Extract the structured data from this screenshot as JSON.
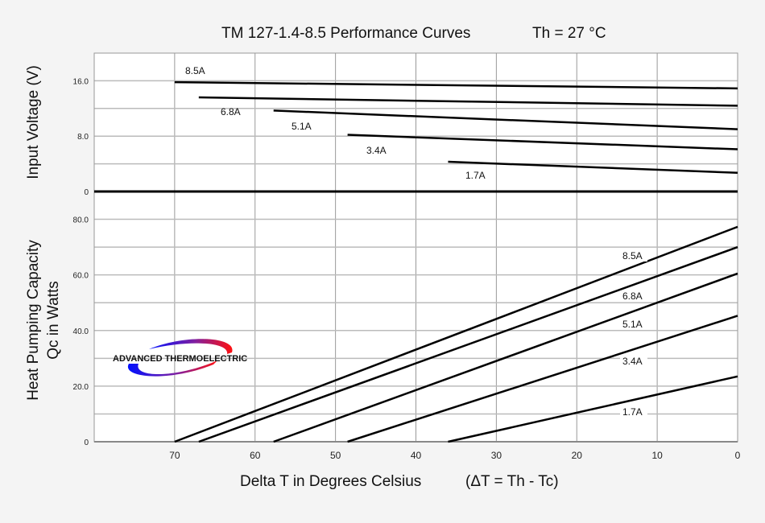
{
  "chart_data": [
    {
      "type": "line",
      "title": "TM 127-1.4-8.5 Performance Curves",
      "subtitle": "Th = 27 °C",
      "xlabel": "Delta T in Degrees Celsius",
      "xlabel_note": "(ΔT = Th - Tc)",
      "ylabel": "Input Voltage (V)",
      "xlim": [
        80,
        0
      ],
      "ylim": [
        0,
        20
      ],
      "x_ticks": [
        "70",
        "60",
        "50",
        "40",
        "30",
        "20",
        "10",
        "0"
      ],
      "y_ticks": [
        "0",
        "8.0",
        "16.0"
      ],
      "grid": true,
      "series": [
        {
          "name": "8.5A",
          "x": [
            70,
            0
          ],
          "y": [
            15.8,
            14.9
          ]
        },
        {
          "name": "6.8A",
          "x": [
            67,
            0
          ],
          "y": [
            13.6,
            12.4
          ]
        },
        {
          "name": "5.1A",
          "x": [
            57.7,
            0
          ],
          "y": [
            11.7,
            9.0
          ]
        },
        {
          "name": "3.4A",
          "x": [
            48.5,
            0
          ],
          "y": [
            8.2,
            6.1
          ]
        },
        {
          "name": "1.7A",
          "x": [
            36,
            0
          ],
          "y": [
            4.3,
            2.7
          ]
        }
      ]
    },
    {
      "type": "line",
      "ylabel_line1": "Heat Pumping Capacity",
      "ylabel_line2": "Qc in Watts",
      "xlim": [
        80,
        0
      ],
      "ylim": [
        0,
        90
      ],
      "y_ticks": [
        "0",
        "20.0",
        "40.0",
        "60.0",
        "80.0"
      ],
      "grid": true,
      "series": [
        {
          "name": "8.5A",
          "x": [
            70,
            0
          ],
          "y": [
            0,
            77.3
          ]
        },
        {
          "name": "6.8A",
          "x": [
            67,
            0
          ],
          "y": [
            0,
            70
          ]
        },
        {
          "name": "5.1A",
          "x": [
            57.7,
            0
          ],
          "y": [
            0,
            60.5
          ]
        },
        {
          "name": "3.4A",
          "x": [
            48.5,
            0
          ],
          "y": [
            0,
            45.3
          ]
        },
        {
          "name": "1.7A",
          "x": [
            36,
            0
          ],
          "y": [
            0,
            23.5
          ]
        }
      ]
    }
  ],
  "logo_text": "ADVANCED THERMOELECTRIC"
}
